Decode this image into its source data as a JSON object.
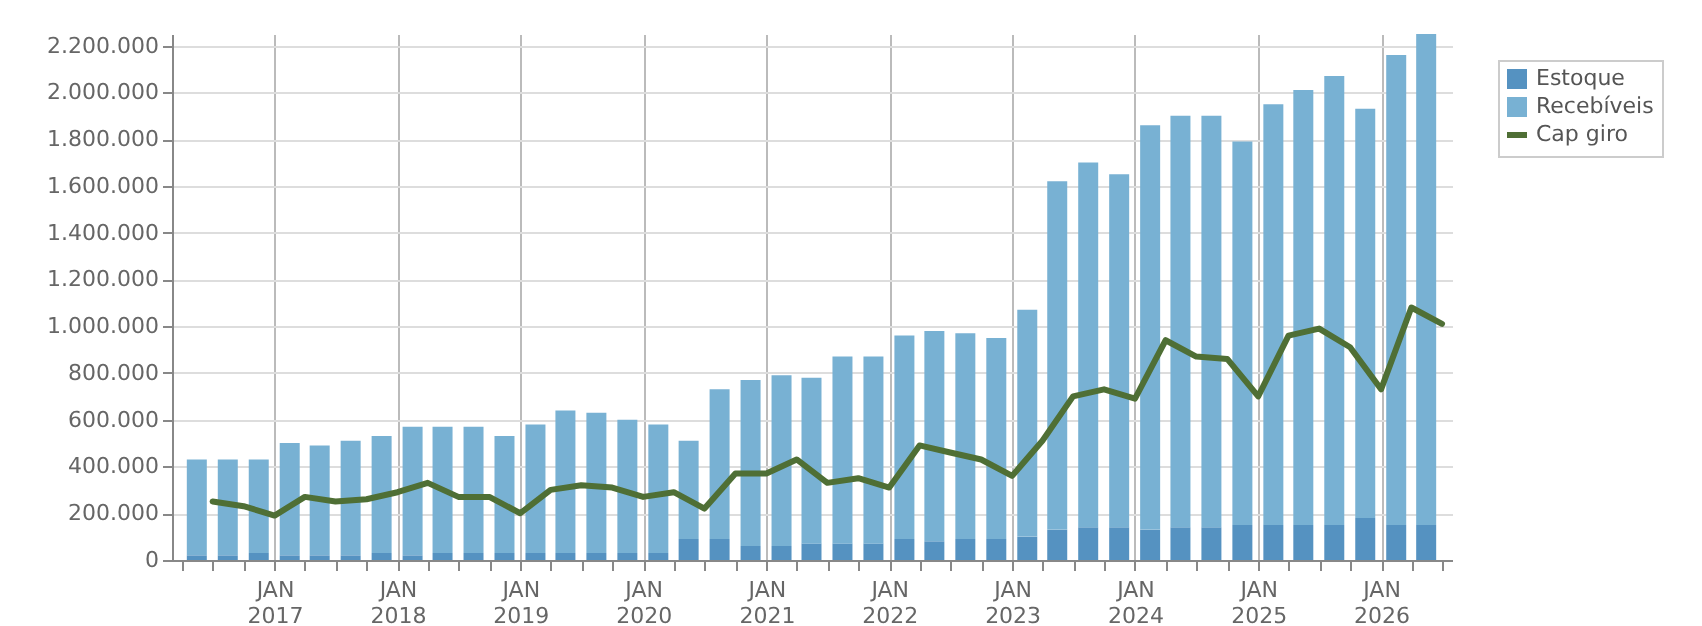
{
  "chart_data": {
    "type": "bar",
    "stacked": true,
    "grid": true,
    "legend": "top right",
    "xlim": [
      "2016-04",
      "2026-07"
    ],
    "xticks": [
      {
        "value": "2016-04",
        "label": null
      },
      {
        "value": "2016-07",
        "label": null
      },
      {
        "value": "2016-10",
        "label": null
      },
      {
        "value": "2017-01",
        "label": "JAN 2017"
      },
      {
        "value": "2017-04",
        "label": null
      },
      {
        "value": "2017-07",
        "label": null
      },
      {
        "value": "2017-10",
        "label": null
      },
      {
        "value": "2018-01",
        "label": "JAN 2018"
      },
      {
        "value": "2018-04",
        "label": null
      },
      {
        "value": "2018-07",
        "label": null
      },
      {
        "value": "2018-10",
        "label": null
      },
      {
        "value": "2019-01",
        "label": "JAN 2019"
      },
      {
        "value": "2019-04",
        "label": null
      },
      {
        "value": "2019-07",
        "label": null
      },
      {
        "value": "2019-10",
        "label": null
      },
      {
        "value": "2020-01",
        "label": "JAN 2020"
      },
      {
        "value": "2020-04",
        "label": null
      },
      {
        "value": "2020-07",
        "label": null
      },
      {
        "value": "2020-10",
        "label": null
      },
      {
        "value": "2021-01",
        "label": "JAN 2021"
      },
      {
        "value": "2021-04",
        "label": null
      },
      {
        "value": "2021-07",
        "label": null
      },
      {
        "value": "2021-10",
        "label": null
      },
      {
        "value": "2022-01",
        "label": "JAN 2022"
      },
      {
        "value": "2022-04",
        "label": null
      },
      {
        "value": "2022-07",
        "label": null
      },
      {
        "value": "2022-10",
        "label": null
      },
      {
        "value": "2023-01",
        "label": "JAN 2023"
      },
      {
        "value": "2023-04",
        "label": null
      },
      {
        "value": "2023-07",
        "label": null
      },
      {
        "value": "2023-10",
        "label": null
      },
      {
        "value": "2024-01",
        "label": "JAN 2024"
      },
      {
        "value": "2024-04",
        "label": null
      },
      {
        "value": "2024-07",
        "label": null
      },
      {
        "value": "2024-10",
        "label": null
      },
      {
        "value": "2025-01",
        "label": "JAN 2025"
      },
      {
        "value": "2025-04",
        "label": null
      },
      {
        "value": "2025-07",
        "label": null
      },
      {
        "value": "2025-10",
        "label": null
      },
      {
        "value": "2026-01",
        "label": "JAN 2026"
      },
      {
        "value": "2026-04",
        "label": null
      },
      {
        "value": "2026-07",
        "label": null
      }
    ],
    "ylim": [
      0,
      2250000
    ],
    "yticks": [
      {
        "value": 0,
        "label": "0"
      },
      {
        "value": 200000,
        "label": "200.000"
      },
      {
        "value": 400000,
        "label": "400.000"
      },
      {
        "value": 600000,
        "label": "600.000"
      },
      {
        "value": 800000,
        "label": "800.000"
      },
      {
        "value": 1000000,
        "label": "1.000.000"
      },
      {
        "value": 1200000,
        "label": "1.200.000"
      },
      {
        "value": 1400000,
        "label": "1.400.000"
      },
      {
        "value": 1600000,
        "label": "1.600.000"
      },
      {
        "value": 1800000,
        "label": "1.800.000"
      },
      {
        "value": 2000000,
        "label": "2.000.000"
      },
      {
        "value": 2200000,
        "label": "2.200.000"
      }
    ],
    "x": [
      "2016-05-15",
      "2016-08-15",
      "2016-11-15",
      "2017-02-15",
      "2017-05-15",
      "2017-08-15",
      "2017-11-15",
      "2018-02-15",
      "2018-05-15",
      "2018-08-15",
      "2018-11-15",
      "2019-02-15",
      "2019-05-15",
      "2019-08-15",
      "2019-11-15",
      "2020-02-15",
      "2020-05-15",
      "2020-08-15",
      "2020-11-15",
      "2021-02-15",
      "2021-05-15",
      "2021-08-15",
      "2021-11-15",
      "2022-02-15",
      "2022-05-15",
      "2022-08-15",
      "2022-11-15",
      "2023-02-15",
      "2023-05-15",
      "2023-08-15",
      "2023-11-15",
      "2024-02-15",
      "2024-05-15",
      "2024-08-15",
      "2024-11-15",
      "2025-02-15",
      "2025-05-15",
      "2025-08-15",
      "2025-11-15",
      "2026-02-15",
      "2026-05-15"
    ],
    "series": [
      {
        "name": "Estoque",
        "color": "#5592c1",
        "values": [
          20000,
          20000,
          30000,
          20000,
          20000,
          20000,
          30000,
          20000,
          30000,
          30000,
          30000,
          30000,
          30000,
          30000,
          30000,
          30000,
          90000,
          90000,
          60000,
          60000,
          70000,
          70000,
          70000,
          90000,
          80000,
          90000,
          90000,
          100000,
          130000,
          140000,
          140000,
          130000,
          140000,
          140000,
          150000,
          150000,
          150000,
          150000,
          180000,
          150000,
          150000
        ]
      },
      {
        "name": "Recebíveis",
        "color": "#78b1d3",
        "values": [
          410000,
          410000,
          400000,
          480000,
          470000,
          490000,
          500000,
          550000,
          540000,
          540000,
          500000,
          550000,
          610000,
          600000,
          570000,
          550000,
          420000,
          640000,
          710000,
          730000,
          710000,
          800000,
          800000,
          870000,
          900000,
          880000,
          860000,
          970000,
          1490000,
          1560000,
          1510000,
          1730000,
          1760000,
          1760000,
          1640000,
          1800000,
          1860000,
          1920000,
          1750000,
          2010000,
          2100000
        ]
      },
      {
        "name": "Cap giro",
        "type": "line",
        "color": "#4f6f35",
        "x": [
          "2016-07",
          "2016-10",
          "2017-01",
          "2017-04",
          "2017-07",
          "2017-10",
          "2018-01",
          "2018-04",
          "2018-07",
          "2018-10",
          "2019-01",
          "2019-04",
          "2019-07",
          "2019-10",
          "2020-01",
          "2020-04",
          "2020-07",
          "2020-10",
          "2021-01",
          "2021-04",
          "2021-07",
          "2021-10",
          "2022-01",
          "2022-04",
          "2022-07",
          "2022-10",
          "2023-01",
          "2023-04",
          "2023-07",
          "2023-10",
          "2024-01",
          "2024-04",
          "2024-07",
          "2024-10",
          "2025-01",
          "2025-04",
          "2025-07",
          "2025-10",
          "2026-01",
          "2026-04",
          "2026-07"
        ],
        "values": [
          250000,
          230000,
          190000,
          270000,
          250000,
          260000,
          290000,
          330000,
          270000,
          270000,
          200000,
          300000,
          320000,
          310000,
          270000,
          290000,
          220000,
          370000,
          370000,
          430000,
          330000,
          350000,
          310000,
          490000,
          460000,
          430000,
          360000,
          510000,
          700000,
          730000,
          690000,
          940000,
          870000,
          860000,
          700000,
          960000,
          990000,
          910000,
          730000,
          1080000,
          1010000
        ]
      }
    ]
  }
}
